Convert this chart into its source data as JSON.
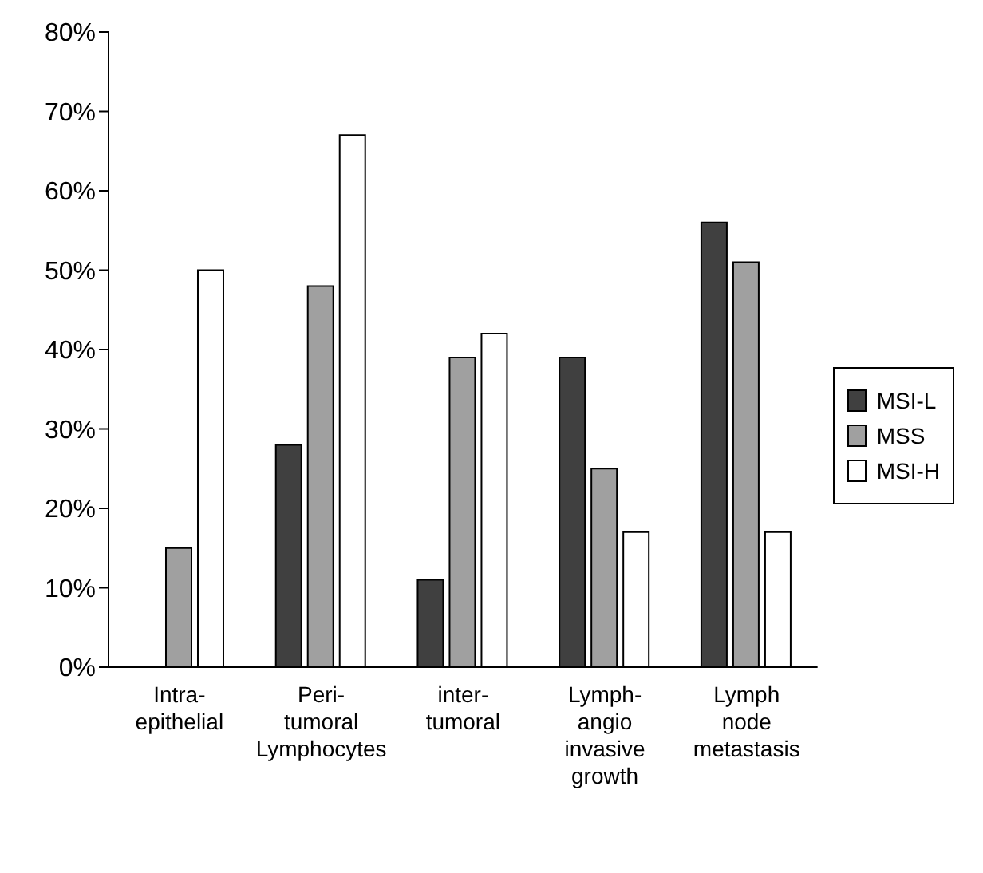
{
  "chart_data": {
    "type": "bar",
    "categories": [
      "Intra-\nepithelial",
      "Peri-\ntumoral\nLymphocytes",
      "inter-\ntumoral",
      "Lymph-\nangio\ninvasive\ngrowth",
      "Lymph\nnode\nmetastasis"
    ],
    "series": [
      {
        "name": "MSI-L",
        "color": "#404040",
        "values": [
          0,
          28,
          11,
          39,
          56
        ]
      },
      {
        "name": "MSS",
        "color": "#a0a0a0",
        "values": [
          15,
          48,
          39,
          25,
          51
        ]
      },
      {
        "name": "MSI-H",
        "color": "#ffffff",
        "values": [
          50,
          67,
          42,
          17,
          17
        ]
      }
    ],
    "ylim": [
      0,
      80
    ],
    "yticks": [
      {
        "value": 0,
        "label": "0%"
      },
      {
        "value": 10,
        "label": "10%"
      },
      {
        "value": 20,
        "label": "20%"
      },
      {
        "value": 30,
        "label": "30%"
      },
      {
        "value": 40,
        "label": "40%"
      },
      {
        "value": 50,
        "label": "50%"
      },
      {
        "value": 60,
        "label": "60%"
      },
      {
        "value": 70,
        "label": "70%"
      },
      {
        "value": 80,
        "label": "80%"
      }
    ],
    "grid": false,
    "legend": "right"
  }
}
